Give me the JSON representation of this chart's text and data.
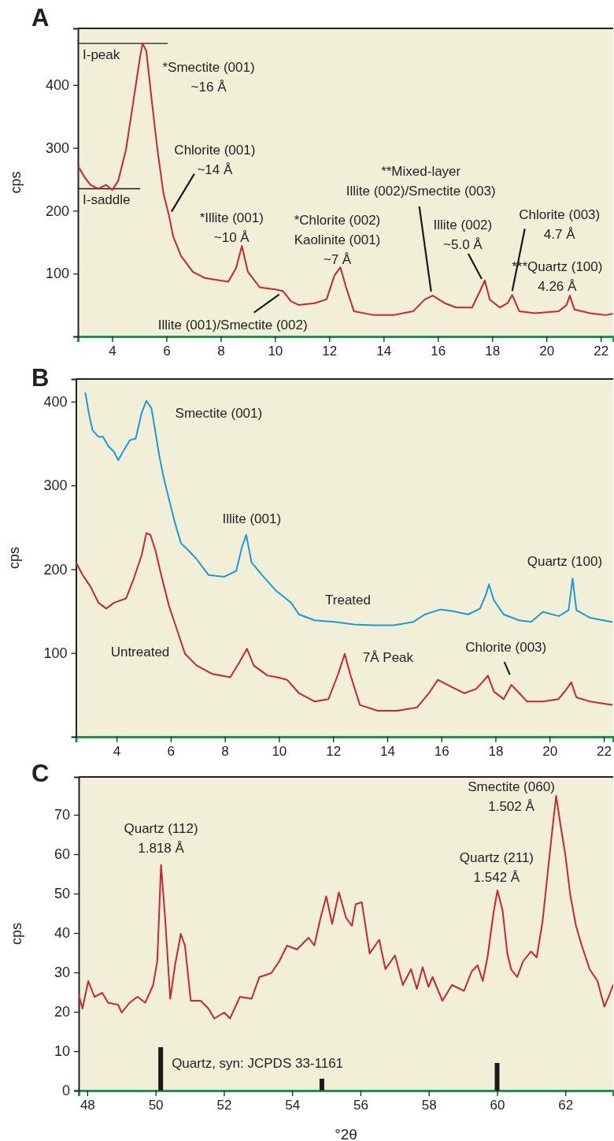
{
  "chart_data": [
    {
      "type": "line",
      "title": "A",
      "ylabel": "cps",
      "xlim": [
        2.74,
        22.46
      ],
      "ylim": [
        0,
        490
      ],
      "xticks": [
        4,
        6,
        8,
        10,
        12,
        14,
        16,
        18,
        20,
        22
      ],
      "yticks": [
        100,
        200,
        300,
        400
      ],
      "series": [
        {
          "color": "#c8272d",
          "x": [
            2.77,
            2.99,
            3.2,
            3.49,
            3.78,
            4.0,
            4.22,
            4.51,
            4.8,
            5.02,
            5.12,
            5.26,
            5.45,
            5.67,
            5.89,
            6.1,
            6.25,
            6.54,
            6.97,
            7.41,
            7.99,
            8.28,
            8.57,
            8.78,
            9.0,
            9.44,
            10.01,
            10.3,
            10.59,
            10.88,
            11.46,
            11.9,
            12.19,
            12.41,
            12.62,
            12.91,
            13.64,
            14.36,
            15.09,
            15.52,
            15.81,
            16.25,
            16.68,
            17.26,
            17.55,
            17.73,
            17.91,
            18.28,
            18.57,
            18.74,
            19.0,
            19.58,
            20.45,
            20.74,
            20.86,
            21.03,
            21.61,
            22.19,
            22.42
          ],
          "values": [
            269,
            253,
            241,
            235,
            241,
            233,
            247,
            297,
            379,
            442,
            466,
            454,
            379,
            297,
            228,
            191,
            159,
            128,
            103,
            93,
            89,
            87,
            109,
            144,
            103,
            78,
            75,
            72,
            56,
            50,
            53,
            59,
            97,
            110,
            78,
            40,
            34,
            34,
            40,
            59,
            65,
            53,
            46,
            46,
            72,
            89,
            59,
            46,
            53,
            66,
            40,
            37,
            40,
            50,
            65,
            43,
            37,
            34,
            36
          ]
        }
      ],
      "annotations": [
        {
          "text": "*Smectite (001)\n~16 Å",
          "x": 5.12,
          "y": 466
        },
        {
          "text": "Chlorite (001)\n~14 Å",
          "x": 6.1,
          "y": 191
        },
        {
          "text": "*Illite (001)\n~10 Å",
          "x": 8.78,
          "y": 144
        },
        {
          "text": "Illite (001)/Smectite (002)",
          "x": 10.3,
          "y": 72
        },
        {
          "text": "*Chlorite (002)\nKaolinite (001)\n~7 Å",
          "x": 12.41,
          "y": 110
        },
        {
          "text": "**Mixed-layer\nIllite (002)/Smectite (003)",
          "x": 15.81,
          "y": 65
        },
        {
          "text": "Illite (002)\n~5.0 Å",
          "x": 17.73,
          "y": 89
        },
        {
          "text": "Chlorite (003)\n4.7 Å",
          "x": 18.74,
          "y": 66
        },
        {
          "text": "***Quartz (100)\n4.26 Å",
          "x": 20.86,
          "y": 65
        }
      ],
      "ref_lines": [
        {
          "axis": "y",
          "value": 466,
          "label": "I-peak",
          "color": "#1a1a1a"
        },
        {
          "axis": "y",
          "value": 235,
          "label": "I-saddle",
          "color": "#1a1a1a"
        }
      ]
    },
    {
      "type": "line",
      "title": "B",
      "ylabel": "cps",
      "xlim": [
        2.5,
        22.35
      ],
      "ylim": [
        0,
        427
      ],
      "xticks": [
        4,
        6,
        8,
        10,
        12,
        14,
        16,
        18,
        20,
        22
      ],
      "yticks": [
        100,
        200,
        300,
        400
      ],
      "series": [
        {
          "name": "Treated",
          "color": "#1a9ad6",
          "x": [
            2.85,
            2.97,
            3.11,
            3.33,
            3.5,
            3.69,
            3.91,
            4.06,
            4.27,
            4.49,
            4.71,
            4.93,
            5.1,
            5.29,
            5.44,
            5.58,
            5.73,
            5.94,
            6.16,
            6.38,
            6.67,
            6.96,
            7.4,
            7.98,
            8.42,
            8.63,
            8.79,
            8.99,
            9.43,
            9.87,
            10.45,
            10.74,
            11.32,
            12.05,
            12.78,
            13.5,
            14.23,
            14.96,
            15.39,
            15.97,
            16.41,
            16.99,
            17.43,
            17.65,
            17.76,
            17.94,
            18.3,
            18.88,
            19.32,
            19.75,
            20.34,
            20.7,
            20.85,
            20.99,
            21.5,
            22.3
          ],
          "values": [
            410,
            387,
            366,
            358,
            358,
            347,
            340,
            330,
            342,
            354,
            356,
            387,
            401,
            392,
            363,
            335,
            311,
            283,
            255,
            231,
            222,
            212,
            193,
            191,
            198,
            226,
            241,
            208,
            191,
            175,
            160,
            146,
            139,
            137,
            134,
            133,
            133,
            137,
            146,
            152,
            150,
            146,
            153,
            170,
            182,
            163,
            146,
            139,
            137,
            149,
            144,
            151,
            189,
            151,
            142,
            137
          ]
        },
        {
          "name": "Untreated",
          "color": "#c8272d",
          "x": [
            2.5,
            2.75,
            3.04,
            3.33,
            3.62,
            3.91,
            4.35,
            4.64,
            4.93,
            5.1,
            5.25,
            5.44,
            5.65,
            5.94,
            6.24,
            6.53,
            6.96,
            7.54,
            8.2,
            8.56,
            8.82,
            9.07,
            9.58,
            9.94,
            10.3,
            10.74,
            11.32,
            11.83,
            12.19,
            12.43,
            12.63,
            12.99,
            13.65,
            14.37,
            15.1,
            15.54,
            15.87,
            16.41,
            16.85,
            17.28,
            17.54,
            17.72,
            17.94,
            18.3,
            18.59,
            18.88,
            19.17,
            19.75,
            20.33,
            20.63,
            20.8,
            20.99,
            21.5,
            22.3
          ],
          "values": [
            208,
            193,
            179,
            160,
            153,
            160,
            165,
            189,
            217,
            243,
            241,
            222,
            193,
            156,
            127,
            99,
            85,
            75,
            71,
            90,
            105,
            85,
            73,
            71,
            68,
            52,
            42,
            45,
            75,
            99,
            75,
            38,
            31,
            31,
            35,
            52,
            68,
            59,
            52,
            57,
            66,
            73,
            54,
            45,
            62,
            52,
            42,
            42,
            45,
            57,
            65,
            47,
            42,
            38
          ]
        }
      ],
      "annotations": [
        {
          "text": "Smectite (001)",
          "x": 5.1,
          "y": 401
        },
        {
          "text": "Illite (001)",
          "x": 8.79,
          "y": 241
        },
        {
          "text": "Quartz (100)",
          "x": 20.85,
          "y": 189
        },
        {
          "text": "7Å Peak",
          "x": 12.43,
          "y": 99
        },
        {
          "text": "Chlorite (003)",
          "x": 18.59,
          "y": 62
        }
      ]
    },
    {
      "type": "line",
      "title": "C",
      "ylabel": "cps",
      "xlabel": "°2θ",
      "xlim": [
        47.75,
        63.4
      ],
      "ylim": [
        0,
        79.6
      ],
      "xticks": [
        48,
        50,
        52,
        54,
        56,
        58,
        60,
        62
      ],
      "yticks": [
        0,
        10,
        20,
        30,
        40,
        50,
        60,
        70
      ],
      "series": [
        {
          "color": "#c8272d",
          "x": [
            47.75,
            47.86,
            48.03,
            48.21,
            48.44,
            48.61,
            48.9,
            49.01,
            49.24,
            49.47,
            49.7,
            49.93,
            50.05,
            50.16,
            50.28,
            50.43,
            50.57,
            50.74,
            50.86,
            51.03,
            51.32,
            51.55,
            51.72,
            52.01,
            52.18,
            52.47,
            52.81,
            53.04,
            53.39,
            53.62,
            53.85,
            54.14,
            54.48,
            54.65,
            54.83,
            55.0,
            55.17,
            55.37,
            55.58,
            55.75,
            55.86,
            56.04,
            56.27,
            56.55,
            56.73,
            57.01,
            57.24,
            57.48,
            57.65,
            57.82,
            57.99,
            58.11,
            58.4,
            58.68,
            59.03,
            59.26,
            59.43,
            59.58,
            59.72,
            59.89,
            60.01,
            60.16,
            60.3,
            60.41,
            60.59,
            60.76,
            60.99,
            61.16,
            61.33,
            61.5,
            61.65,
            61.73,
            61.85,
            62.0,
            62.14,
            62.31,
            62.48,
            62.71,
            62.94,
            63.14,
            63.29,
            63.4
          ],
          "values": [
            24.3,
            20.8,
            27.8,
            23.8,
            24.8,
            22.3,
            21.8,
            19.8,
            22.3,
            23.8,
            22.3,
            26.8,
            32.8,
            57.3,
            43.8,
            23.3,
            31.8,
            39.8,
            36.8,
            22.8,
            22.8,
            20.8,
            18.3,
            19.8,
            18.3,
            23.8,
            23.3,
            28.8,
            29.8,
            32.8,
            36.8,
            35.8,
            38.8,
            36.8,
            43.8,
            49.3,
            42.3,
            50.3,
            43.8,
            41.8,
            47.3,
            47.8,
            34.8,
            38.3,
            30.8,
            34.3,
            26.8,
            30.8,
            25.8,
            31.3,
            26.3,
            28.8,
            22.8,
            26.8,
            25.3,
            30.3,
            31.8,
            27.8,
            33.8,
            44.8,
            50.8,
            45.8,
            34.8,
            30.8,
            28.8,
            32.8,
            35.3,
            33.8,
            42.8,
            56.8,
            68.8,
            74.8,
            67.8,
            59.8,
            49.8,
            41.8,
            36.8,
            30.8,
            27.8,
            21.3,
            24.3,
            26.8
          ]
        },
        {
          "name": "Quartz, syn: JCPDS 33-1161",
          "type": "bar",
          "color": "#1a1a1a",
          "x": [
            50.15,
            54.87,
            60.0
          ],
          "values": [
            11,
            3,
            7
          ]
        }
      ],
      "annotations": [
        {
          "text": "Quartz (112)\n1.818 Å",
          "x": 50.16,
          "y": 57.3
        },
        {
          "text": "Smectite (060)\n1.502 Å",
          "x": 61.73,
          "y": 74.8
        },
        {
          "text": "Quartz (211)\n1.542 Å",
          "x": 60.01,
          "y": 50.8
        }
      ]
    }
  ]
}
